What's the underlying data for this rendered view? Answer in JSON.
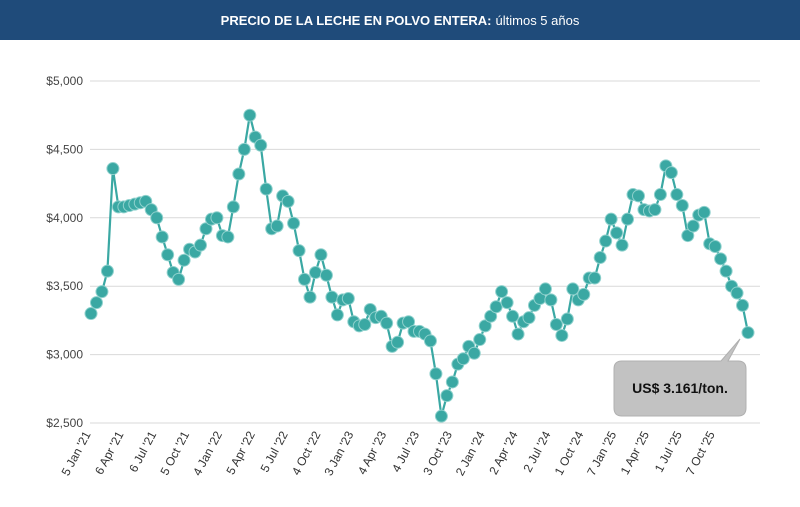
{
  "header": {
    "title_bold": "PRECIO DE LA LECHE EN POLVO ENTERA:",
    "title_rest": "últimos 5 años"
  },
  "chart_data": {
    "type": "line",
    "title": "PRECIO DE LA LECHE EN POLVO ENTERA: últimos 5 años",
    "xlabel": "",
    "ylabel": "",
    "ylim": [
      2500,
      5000
    ],
    "yticks": [
      2500,
      3000,
      3500,
      4000,
      4500,
      5000
    ],
    "ytick_labels": [
      "$2,500",
      "$3,000",
      "$3,500",
      "$4,000",
      "$4,500",
      "$5,000"
    ],
    "grid": true,
    "line_color": "#3aa8a3",
    "xtick_labels": [
      "5 Jan '21",
      "6 Apr '21",
      "6 Jul '21",
      "5 Oct '21",
      "4 Jan '22",
      "5 Apr '22",
      "5 Jul '22",
      "4 Oct '22",
      "3 Jan '23",
      "4 Apr '23",
      "4 Jul '23",
      "3 Oct '23",
      "2 Jan '24",
      "2 Apr '24",
      "2 Jul '24",
      "1 Oct '24",
      "7 Jan '25",
      "1 Apr '25",
      "1 Jul '25",
      "7 Oct '25"
    ],
    "xtick_index": [
      0,
      6,
      12,
      18,
      24,
      30,
      36,
      42,
      48,
      54,
      60,
      66,
      72,
      78,
      84,
      90,
      96,
      102,
      108,
      114
    ],
    "values": [
      3300,
      3380,
      3460,
      3610,
      4360,
      4080,
      4080,
      4090,
      4100,
      4110,
      4120,
      4060,
      4000,
      3860,
      3730,
      3600,
      3550,
      3690,
      3770,
      3750,
      3800,
      3920,
      3990,
      4000,
      3870,
      3860,
      4080,
      4320,
      4500,
      4750,
      4590,
      4530,
      4210,
      3920,
      3940,
      4160,
      4120,
      3960,
      3760,
      3550,
      3420,
      3600,
      3730,
      3580,
      3420,
      3290,
      3400,
      3410,
      3240,
      3210,
      3220,
      3330,
      3270,
      3280,
      3230,
      3060,
      3090,
      3230,
      3240,
      3170,
      3170,
      3150,
      3100,
      2860,
      2550,
      2700,
      2800,
      2930,
      2970,
      3060,
      3010,
      3110,
      3210,
      3280,
      3350,
      3460,
      3380,
      3280,
      3150,
      3240,
      3270,
      3360,
      3410,
      3480,
      3400,
      3220,
      3140,
      3260,
      3480,
      3400,
      3440,
      3560,
      3560,
      3710,
      3830,
      3990,
      3890,
      3800,
      3990,
      4170,
      4160,
      4060,
      4050,
      4060,
      4170,
      4380,
      4330,
      4170,
      4090,
      3870,
      3940,
      4020,
      4040,
      3810,
      3790,
      3700,
      3610,
      3500,
      3450,
      3360,
      3161
    ],
    "annotation": "US$ 3.161/ton."
  }
}
